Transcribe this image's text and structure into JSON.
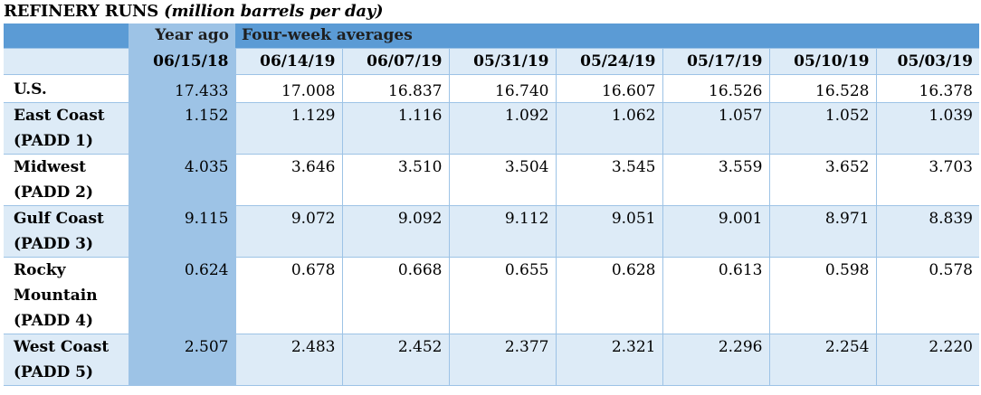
{
  "title": {
    "main": "REFINERY RUNS",
    "unit": "(million barrels per day)"
  },
  "header": {
    "year_ago": "Year ago",
    "four_week": "Four-week averages",
    "dates": [
      "06/15/18",
      "06/14/19",
      "06/07/19",
      "05/31/19",
      "05/24/19",
      "05/17/19",
      "05/10/19",
      "05/03/19"
    ]
  },
  "rows": [
    {
      "label_lines": [
        "U.S."
      ],
      "values": [
        "17.433",
        "17.008",
        "16.837",
        "16.740",
        "16.607",
        "16.526",
        "16.528",
        "16.378"
      ]
    },
    {
      "label_lines": [
        "East Coast",
        "(PADD 1)"
      ],
      "values": [
        "1.152",
        "1.129",
        "1.116",
        "1.092",
        "1.062",
        "1.057",
        "1.052",
        "1.039"
      ]
    },
    {
      "label_lines": [
        "Midwest",
        "(PADD 2)"
      ],
      "values": [
        "4.035",
        "3.646",
        "3.510",
        "3.504",
        "3.545",
        "3.559",
        "3.652",
        "3.703"
      ]
    },
    {
      "label_lines": [
        "Gulf Coast",
        "(PADD 3)"
      ],
      "values": [
        "9.115",
        "9.072",
        "9.092",
        "9.112",
        "9.051",
        "9.001",
        "8.971",
        "8.839"
      ]
    },
    {
      "label_lines": [
        "Rocky",
        "Mountain",
        "(PADD 4)"
      ],
      "values": [
        "0.624",
        "0.678",
        "0.668",
        "0.655",
        "0.628",
        "0.613",
        "0.598",
        "0.578"
      ]
    },
    {
      "label_lines": [
        "West Coast",
        "(PADD 5)"
      ],
      "values": [
        "2.507",
        "2.483",
        "2.452",
        "2.377",
        "2.321",
        "2.296",
        "2.254",
        "2.220"
      ]
    }
  ],
  "colors": {
    "header_blue": "#5b9bd5",
    "year_ago_blue": "#9dc3e6",
    "light_band": "#ddebf7"
  }
}
